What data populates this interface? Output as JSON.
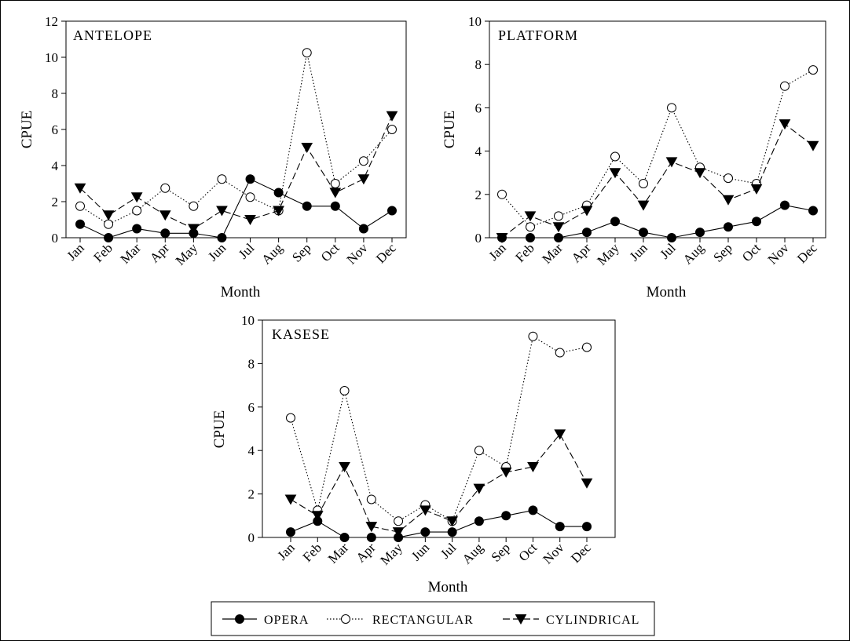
{
  "chart_data": [
    {
      "type": "line",
      "title": "ANTELOPE",
      "xlabel": "Month",
      "ylabel": "CPUE",
      "ylim": [
        0,
        12
      ],
      "yticks": [
        0,
        2,
        4,
        6,
        8,
        10,
        12
      ],
      "grid": false,
      "categories": [
        "Jan",
        "Feb",
        "Mar",
        "Apr",
        "May",
        "Jun",
        "Jul",
        "Aug",
        "Sep",
        "Oct",
        "Nov",
        "Dec"
      ],
      "series": [
        {
          "name": "OPERA",
          "values": [
            0.75,
            0,
            0.5,
            0.25,
            0.25,
            0,
            3.25,
            2.5,
            1.75,
            1.75,
            0.5,
            1.5
          ]
        },
        {
          "name": "RECTANGULAR",
          "values": [
            1.75,
            0.75,
            1.5,
            2.75,
            1.75,
            3.25,
            2.25,
            1.5,
            10.25,
            3.0,
            4.25,
            6.0
          ]
        },
        {
          "name": "CYLINDRICAL",
          "values": [
            2.75,
            1.25,
            2.25,
            1.25,
            0.5,
            1.5,
            1.0,
            1.5,
            5.0,
            2.5,
            3.25,
            6.75
          ]
        }
      ]
    },
    {
      "type": "line",
      "title": "PLATFORM",
      "xlabel": "Month",
      "ylabel": "CPUE",
      "ylim": [
        0,
        10
      ],
      "yticks": [
        0,
        2,
        4,
        6,
        8,
        10
      ],
      "grid": false,
      "categories": [
        "Jan",
        "Feb",
        "Mar",
        "Apr",
        "May",
        "Jun",
        "Jul",
        "Aug",
        "Sep",
        "Oct",
        "Nov",
        "Dec"
      ],
      "series": [
        {
          "name": "OPERA",
          "values": [
            0,
            0,
            0,
            0.25,
            0.75,
            0.25,
            0,
            0.25,
            0.5,
            0.75,
            1.5,
            1.25
          ]
        },
        {
          "name": "RECTANGULAR",
          "values": [
            2.0,
            0.5,
            1.0,
            1.5,
            3.75,
            2.5,
            6.0,
            3.25,
            2.75,
            2.5,
            7.0,
            7.75
          ]
        },
        {
          "name": "CYLINDRICAL",
          "values": [
            0,
            1.0,
            0.5,
            1.25,
            3.0,
            1.5,
            3.5,
            3.0,
            1.75,
            2.25,
            5.25,
            4.25
          ]
        }
      ]
    },
    {
      "type": "line",
      "title": "KASESE",
      "xlabel": "Month",
      "ylabel": "CPUE",
      "ylim": [
        0,
        10
      ],
      "yticks": [
        0,
        2,
        4,
        6,
        8,
        10
      ],
      "grid": false,
      "categories": [
        "Jan",
        "Feb",
        "Mar",
        "Apr",
        "May",
        "Jun",
        "Jul",
        "Aug",
        "Sep",
        "Oct",
        "Nov",
        "Dec"
      ],
      "series": [
        {
          "name": "OPERA",
          "values": [
            0.25,
            0.75,
            0,
            0,
            0,
            0.25,
            0.25,
            0.75,
            1.0,
            1.25,
            0.5,
            0.5
          ]
        },
        {
          "name": "RECTANGULAR",
          "values": [
            5.5,
            1.25,
            6.75,
            1.75,
            0.75,
            1.5,
            0.75,
            4.0,
            3.25,
            9.25,
            8.5,
            8.75
          ]
        },
        {
          "name": "CYLINDRICAL",
          "values": [
            1.75,
            1.0,
            3.25,
            0.5,
            0.25,
            1.25,
            0.75,
            2.25,
            3.0,
            3.25,
            4.75,
            2.5
          ]
        }
      ]
    }
  ],
  "legend": {
    "placement": "bottom",
    "items": [
      {
        "label": "OPERA",
        "marker": "filled-circle",
        "dash": "solid"
      },
      {
        "label": "RECTANGULAR",
        "marker": "open-circle",
        "dash": "dotted"
      },
      {
        "label": "CYLINDRICAL",
        "marker": "filled-triangle-down",
        "dash": "dashed"
      }
    ]
  }
}
